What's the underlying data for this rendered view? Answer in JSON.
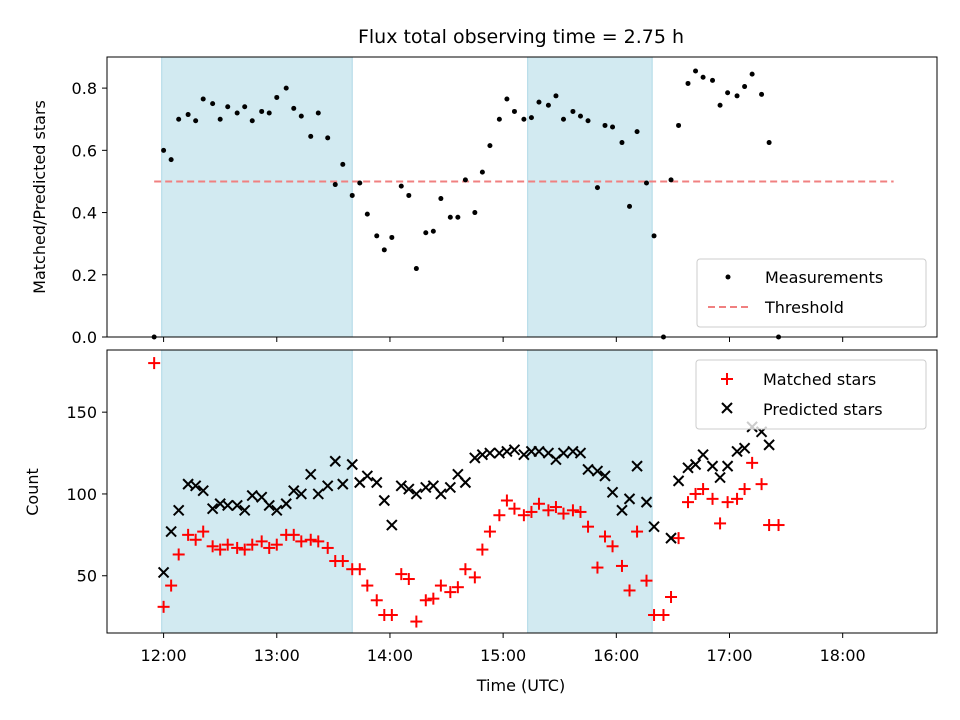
{
  "chart_data": {
    "type": "scatter",
    "title": "Flux total observing time = 2.75 h",
    "xlabel": "Time (UTC)",
    "x_ticks": [
      "12:00",
      "13:00",
      "14:00",
      "15:00",
      "16:00",
      "17:00",
      "18:00"
    ],
    "shaded_intervals": [
      [
        "11:59",
        "13:40"
      ],
      [
        "15:13",
        "16:19"
      ]
    ],
    "shade_color": "#add8e6",
    "panels": [
      {
        "name": "ratio",
        "ylabel": "Matched/Predicted stars",
        "ylim": [
          0,
          0.9
        ],
        "yticks": [
          "0.0",
          "0.2",
          "0.4",
          "0.6",
          "0.8"
        ],
        "legend_position": "lower-right",
        "threshold": {
          "name": "Threshold",
          "value": 0.5,
          "color": "#f08080",
          "style": "dashed",
          "x_start": "11:55",
          "x_end": "18:27"
        },
        "series": [
          {
            "name": "Measurements",
            "marker": "dot",
            "color": "#000000",
            "points": [
              [
                "11:55",
                0.0
              ],
              [
                "12:00",
                0.6
              ],
              [
                "12:04",
                0.57
              ],
              [
                "12:08",
                0.7
              ],
              [
                "12:13",
                0.715
              ],
              [
                "12:17",
                0.695
              ],
              [
                "12:21",
                0.765
              ],
              [
                "12:26",
                0.75
              ],
              [
                "12:30",
                0.7
              ],
              [
                "12:34",
                0.74
              ],
              [
                "12:39",
                0.72
              ],
              [
                "12:43",
                0.74
              ],
              [
                "12:47",
                0.695
              ],
              [
                "12:52",
                0.725
              ],
              [
                "12:56",
                0.72
              ],
              [
                "13:00",
                0.77
              ],
              [
                "13:05",
                0.8
              ],
              [
                "13:09",
                0.735
              ],
              [
                "13:13",
                0.71
              ],
              [
                "13:18",
                0.645
              ],
              [
                "13:22",
                0.72
              ],
              [
                "13:27",
                0.64
              ],
              [
                "13:31",
                0.49
              ],
              [
                "13:35",
                0.555
              ],
              [
                "13:40",
                0.455
              ],
              [
                "13:44",
                0.495
              ],
              [
                "13:48",
                0.395
              ],
              [
                "13:53",
                0.325
              ],
              [
                "13:57",
                0.28
              ],
              [
                "14:01",
                0.32
              ],
              [
                "14:06",
                0.485
              ],
              [
                "14:10",
                0.455
              ],
              [
                "14:14",
                0.22
              ],
              [
                "14:19",
                0.335
              ],
              [
                "14:23",
                0.34
              ],
              [
                "14:27",
                0.445
              ],
              [
                "14:32",
                0.385
              ],
              [
                "14:36",
                0.385
              ],
              [
                "14:40",
                0.505
              ],
              [
                "14:45",
                0.4
              ],
              [
                "14:49",
                0.53
              ],
              [
                "14:53",
                0.615
              ],
              [
                "14:58",
                0.7
              ],
              [
                "15:02",
                0.765
              ],
              [
                "15:06",
                0.725
              ],
              [
                "15:11",
                0.7
              ],
              [
                "15:15",
                0.705
              ],
              [
                "15:19",
                0.755
              ],
              [
                "15:24",
                0.745
              ],
              [
                "15:28",
                0.775
              ],
              [
                "15:32",
                0.7
              ],
              [
                "15:37",
                0.725
              ],
              [
                "15:41",
                0.71
              ],
              [
                "15:45",
                0.695
              ],
              [
                "15:50",
                0.48
              ],
              [
                "15:54",
                0.68
              ],
              [
                "15:58",
                0.675
              ],
              [
                "16:03",
                0.625
              ],
              [
                "16:07",
                0.42
              ],
              [
                "16:11",
                0.66
              ],
              [
                "16:16",
                0.495
              ],
              [
                "16:20",
                0.325
              ],
              [
                "16:25",
                0.0
              ],
              [
                "16:29",
                0.505
              ],
              [
                "16:33",
                0.68
              ],
              [
                "16:38",
                0.815
              ],
              [
                "16:42",
                0.855
              ],
              [
                "16:46",
                0.835
              ],
              [
                "16:51",
                0.825
              ],
              [
                "16:55",
                0.745
              ],
              [
                "16:59",
                0.785
              ],
              [
                "17:04",
                0.775
              ],
              [
                "17:08",
                0.805
              ],
              [
                "17:12",
                0.845
              ],
              [
                "17:17",
                0.78
              ],
              [
                "17:21",
                0.625
              ],
              [
                "17:26",
                0.0
              ]
            ]
          }
        ]
      },
      {
        "name": "counts",
        "ylabel": "Count",
        "ylim": [
          15,
          188
        ],
        "yticks": [
          "50",
          "100",
          "150"
        ],
        "legend_position": "upper-right",
        "series": [
          {
            "name": "Matched stars",
            "marker": "plus",
            "color": "#ff0000",
            "points": [
              [
                "11:55",
                180
              ],
              [
                "12:00",
                31
              ],
              [
                "12:04",
                44
              ],
              [
                "12:08",
                63
              ],
              [
                "12:13",
                75
              ],
              [
                "12:17",
                72
              ],
              [
                "12:21",
                77
              ],
              [
                "12:26",
                68
              ],
              [
                "12:30",
                66
              ],
              [
                "12:34",
                69
              ],
              [
                "12:39",
                67
              ],
              [
                "12:43",
                66
              ],
              [
                "12:47",
                69
              ],
              [
                "12:52",
                71
              ],
              [
                "12:56",
                67
              ],
              [
                "13:00",
                69
              ],
              [
                "13:05",
                75
              ],
              [
                "13:09",
                75
              ],
              [
                "13:13",
                71
              ],
              [
                "13:18",
                72
              ],
              [
                "13:22",
                71
              ],
              [
                "13:27",
                67
              ],
              [
                "13:31",
                59
              ],
              [
                "13:35",
                59
              ],
              [
                "13:40",
                54
              ],
              [
                "13:44",
                54
              ],
              [
                "13:48",
                44
              ],
              [
                "13:53",
                35
              ],
              [
                "13:57",
                26
              ],
              [
                "14:01",
                26
              ],
              [
                "14:06",
                51
              ],
              [
                "14:10",
                48
              ],
              [
                "14:14",
                22
              ],
              [
                "14:19",
                35
              ],
              [
                "14:23",
                36
              ],
              [
                "14:27",
                44
              ],
              [
                "14:32",
                40
              ],
              [
                "14:36",
                43
              ],
              [
                "14:40",
                54
              ],
              [
                "14:45",
                49
              ],
              [
                "14:49",
                66
              ],
              [
                "14:53",
                77
              ],
              [
                "14:58",
                87
              ],
              [
                "15:02",
                96
              ],
              [
                "15:06",
                91
              ],
              [
                "15:11",
                87
              ],
              [
                "15:15",
                89
              ],
              [
                "15:19",
                94
              ],
              [
                "15:24",
                90
              ],
              [
                "15:28",
                92
              ],
              [
                "15:32",
                88
              ],
              [
                "15:37",
                90
              ],
              [
                "15:41",
                89
              ],
              [
                "15:45",
                80
              ],
              [
                "15:50",
                55
              ],
              [
                "15:54",
                74
              ],
              [
                "15:58",
                68
              ],
              [
                "16:03",
                56
              ],
              [
                "16:07",
                41
              ],
              [
                "16:11",
                77
              ],
              [
                "16:16",
                47
              ],
              [
                "16:20",
                26
              ],
              [
                "16:25",
                26
              ],
              [
                "16:29",
                37
              ],
              [
                "16:33",
                73
              ],
              [
                "16:38",
                95
              ],
              [
                "16:42",
                100
              ],
              [
                "16:46",
                103
              ],
              [
                "16:51",
                97
              ],
              [
                "16:55",
                82
              ],
              [
                "16:59",
                95
              ],
              [
                "17:04",
                97
              ],
              [
                "17:08",
                103
              ],
              [
                "17:12",
                119
              ],
              [
                "17:17",
                106
              ],
              [
                "17:21",
                81
              ],
              [
                "17:26",
                81
              ]
            ]
          },
          {
            "name": "Predicted stars",
            "marker": "cross",
            "color": "#000000",
            "points": [
              [
                "12:00",
                52
              ],
              [
                "12:04",
                77
              ],
              [
                "12:08",
                90
              ],
              [
                "12:13",
                106
              ],
              [
                "12:17",
                105
              ],
              [
                "12:21",
                102
              ],
              [
                "12:26",
                91
              ],
              [
                "12:30",
                94
              ],
              [
                "12:34",
                93
              ],
              [
                "12:39",
                93
              ],
              [
                "12:43",
                90
              ],
              [
                "12:47",
                99
              ],
              [
                "12:52",
                98
              ],
              [
                "12:56",
                93
              ],
              [
                "13:00",
                90
              ],
              [
                "13:05",
                94
              ],
              [
                "13:09",
                102
              ],
              [
                "13:13",
                100
              ],
              [
                "13:18",
                112
              ],
              [
                "13:22",
                100
              ],
              [
                "13:27",
                105
              ],
              [
                "13:31",
                120
              ],
              [
                "13:35",
                106
              ],
              [
                "13:40",
                118
              ],
              [
                "13:44",
                107
              ],
              [
                "13:48",
                111
              ],
              [
                "13:53",
                107
              ],
              [
                "13:57",
                96
              ],
              [
                "14:01",
                81
              ],
              [
                "14:06",
                105
              ],
              [
                "14:10",
                103
              ],
              [
                "14:14",
                100
              ],
              [
                "14:19",
                104
              ],
              [
                "14:23",
                105
              ],
              [
                "14:27",
                100
              ],
              [
                "14:32",
                104
              ],
              [
                "14:36",
                112
              ],
              [
                "14:40",
                107
              ],
              [
                "14:45",
                122
              ],
              [
                "14:49",
                124
              ],
              [
                "14:53",
                125
              ],
              [
                "14:58",
                125
              ],
              [
                "15:02",
                126
              ],
              [
                "15:06",
                127
              ],
              [
                "15:11",
                124
              ],
              [
                "15:15",
                126
              ],
              [
                "15:19",
                126
              ],
              [
                "15:24",
                125
              ],
              [
                "15:28",
                121
              ],
              [
                "15:32",
                125
              ],
              [
                "15:37",
                126
              ],
              [
                "15:41",
                125
              ],
              [
                "15:45",
                115
              ],
              [
                "15:50",
                114
              ],
              [
                "15:54",
                111
              ],
              [
                "15:58",
                101
              ],
              [
                "16:03",
                90
              ],
              [
                "16:07",
                97
              ],
              [
                "16:11",
                117
              ],
              [
                "16:16",
                95
              ],
              [
                "16:20",
                80
              ],
              [
                "16:29",
                73
              ],
              [
                "16:33",
                108
              ],
              [
                "16:38",
                116
              ],
              [
                "16:42",
                118
              ],
              [
                "16:46",
                124
              ],
              [
                "16:51",
                117
              ],
              [
                "16:55",
                110
              ],
              [
                "16:59",
                117
              ],
              [
                "17:04",
                126
              ],
              [
                "17:08",
                128
              ],
              [
                "17:12",
                141
              ],
              [
                "17:17",
                138
              ],
              [
                "17:21",
                130
              ]
            ]
          }
        ]
      }
    ]
  }
}
